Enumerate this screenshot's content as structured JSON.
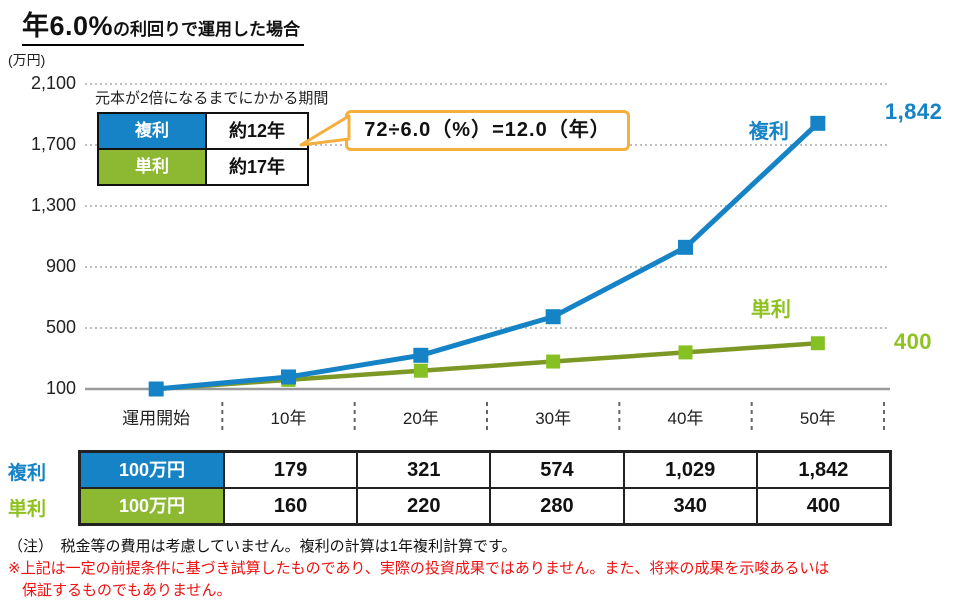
{
  "title": {
    "rate": "年6.0%",
    "rest": "の利回りで運用した場合"
  },
  "chart_data": {
    "type": "line",
    "unit_label": "(万円)",
    "categories": [
      "運用開始",
      "10年",
      "20年",
      "30年",
      "40年",
      "50年"
    ],
    "series": [
      {
        "name": "複利",
        "values": [
          100,
          179,
          321,
          574,
          1029,
          1842
        ],
        "line_color": "#1583C5",
        "marker_color": "#1583C5",
        "label_color": "#1583C5",
        "end_label": "1,842"
      },
      {
        "name": "単利",
        "values": [
          100,
          160,
          220,
          280,
          340,
          400
        ],
        "line_color": "#7E9826",
        "marker_color": "#85C122",
        "label_color": "#8DC21F",
        "end_label": "400"
      }
    ],
    "ylim": [
      100,
      2100
    ],
    "yticks": [
      {
        "v": 2100,
        "label": "2,100"
      },
      {
        "v": 1700,
        "label": "1,700"
      },
      {
        "v": 1300,
        "label": "1,300"
      },
      {
        "v": 900,
        "label": "900"
      },
      {
        "v": 500,
        "label": "500"
      },
      {
        "v": 100,
        "label": "100"
      }
    ],
    "grid": "dotted",
    "legend_position": "end-of-line"
  },
  "doubling_box": {
    "title": "元本が2倍になるまでにかかる期間",
    "rows": [
      {
        "label": "複利",
        "value": "約12年",
        "color": "#1583C5"
      },
      {
        "label": "単利",
        "value": "約17年",
        "color": "#8CB832"
      }
    ]
  },
  "callout": {
    "text": "72÷6.0（%）=12.0（年）",
    "border_color": "#F5AF3C"
  },
  "table": {
    "rows": [
      {
        "label": "複利",
        "label_color": "#1583C5",
        "principal": "100万円",
        "principal_bg": "#1583C5",
        "values": [
          "179",
          "321",
          "574",
          "1,029",
          "1,842"
        ]
      },
      {
        "label": "単利",
        "label_color": "#8DC21F",
        "principal": "100万円",
        "principal_bg": "#8CB832",
        "values": [
          "160",
          "220",
          "280",
          "340",
          "400"
        ]
      }
    ]
  },
  "notes": {
    "note1": "（注）　税金等の費用は考慮していません。複利の計算は1年複利計算です。",
    "warning_line1": "※上記は一定の前提条件に基づき試算したものであり、実際の投資成果ではありません。また、将来の成果を示唆あるいは",
    "warning_line2": "保証するものでもありません。",
    "warning_color": "#EE1111"
  },
  "colors": {
    "grid": "#AAAAAA",
    "axis": "#9A9A9A",
    "separator": "#666666"
  }
}
